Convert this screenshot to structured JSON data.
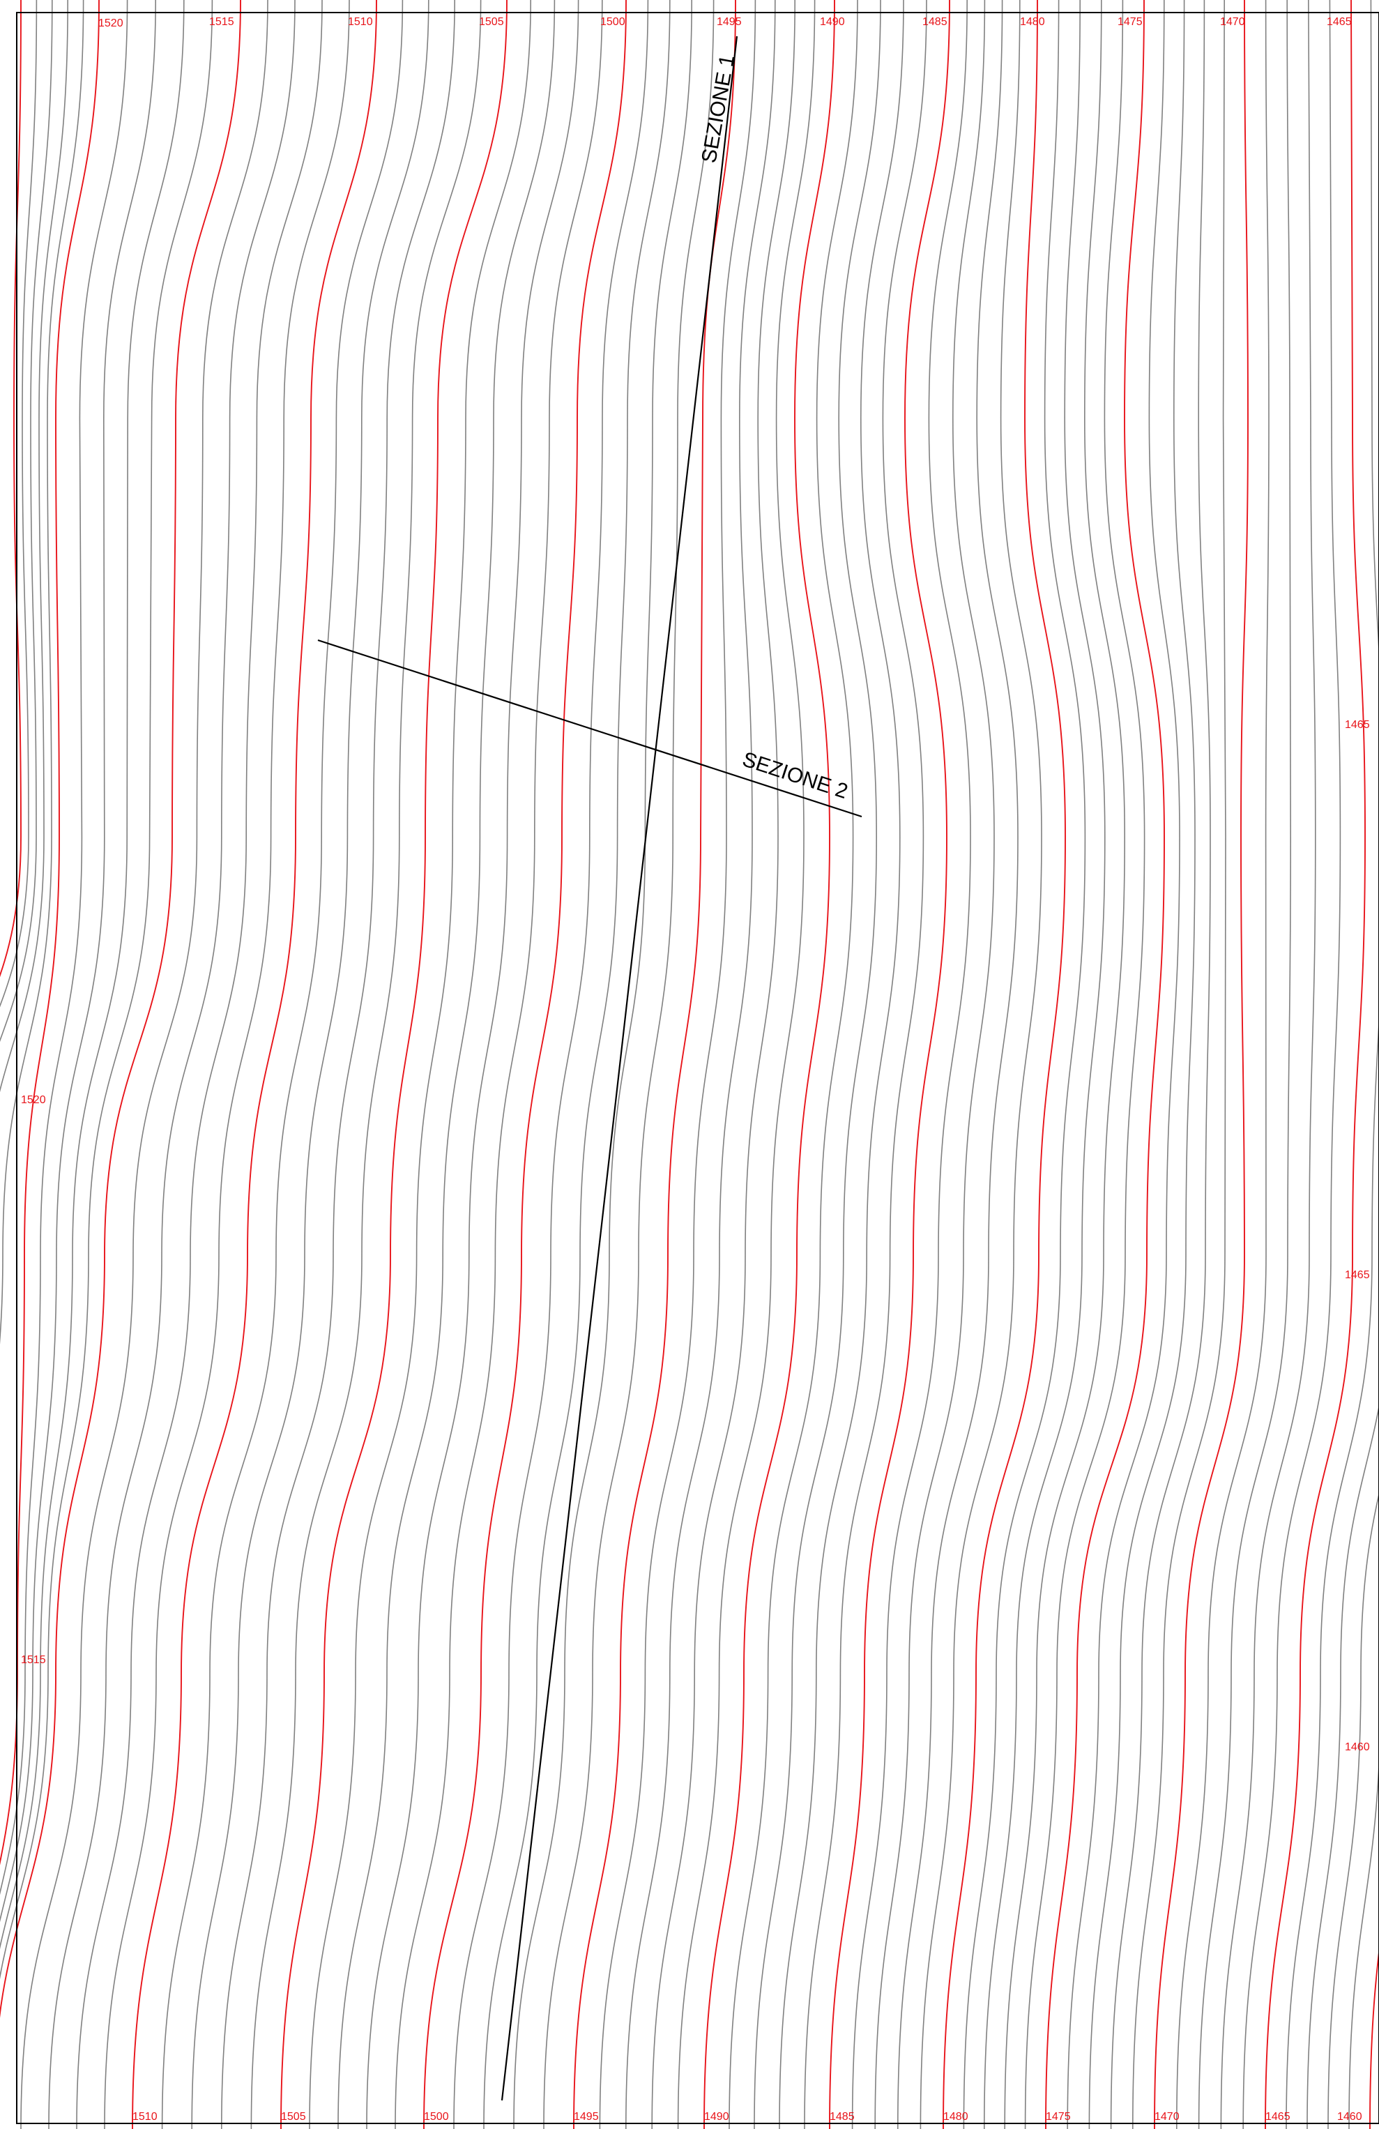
{
  "map": {
    "title": "",
    "colors": {
      "background": "#ffffff",
      "frame": "#000000",
      "index_contour": "#e8141a",
      "intermediate_contour": "#808080",
      "section_line": "#000000",
      "label": "#e8141a"
    },
    "contour_interval": 1,
    "index_interval": 5,
    "top_labels": [
      "1520",
      "1515",
      "1510",
      "1505",
      "1500",
      "1495",
      "1490",
      "1485",
      "1480",
      "1475",
      "1470",
      "1465"
    ],
    "bottom_labels": [
      "1510",
      "1505",
      "1500",
      "1495",
      "1490",
      "1485",
      "1480",
      "1475",
      "1470",
      "1465",
      "1460"
    ],
    "left_labels": [
      "1520",
      "1515"
    ],
    "right_labels": [
      "1465",
      "1465",
      "1460"
    ],
    "sections": [
      {
        "label": "SEZIONE 1"
      },
      {
        "label": "SEZIONE 2"
      }
    ]
  }
}
